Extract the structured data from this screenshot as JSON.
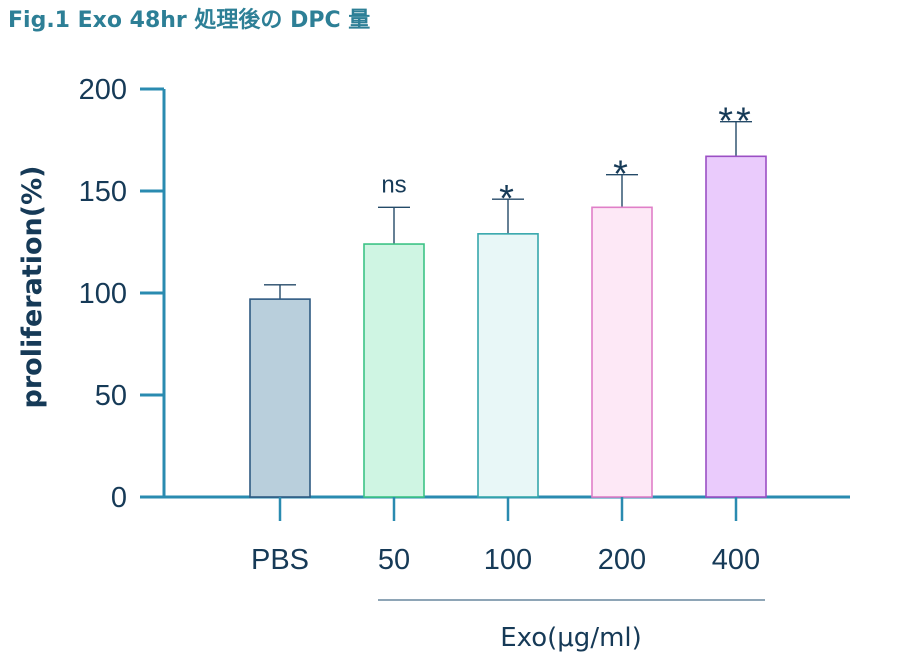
{
  "chart_data": {
    "type": "bar",
    "title": "Fig.1 Exo 48hr 処理後の DPC 量",
    "ylabel": "proliferation(%)",
    "xlabel": "Exo(μg/ml)",
    "ylim": [
      0,
      200
    ],
    "yticks": [
      0,
      50,
      100,
      150,
      200
    ],
    "categories": [
      "PBS",
      "50",
      "100",
      "200",
      "400"
    ],
    "values": [
      97,
      124,
      129,
      142,
      167
    ],
    "errors": [
      7,
      18,
      17,
      16,
      17
    ],
    "significance": [
      "",
      "ns",
      "*",
      "*",
      "**"
    ],
    "bar_fills": [
      "#b9cfdc",
      "#cff5e3",
      "#e8f7f7",
      "#fde8f6",
      "#eacbfc"
    ],
    "bar_strokes": [
      "#2f5a82",
      "#3cc386",
      "#36a7ac",
      "#e07fc8",
      "#9b4fc4"
    ],
    "axis_color": "#2a8bb0",
    "grid": false
  }
}
